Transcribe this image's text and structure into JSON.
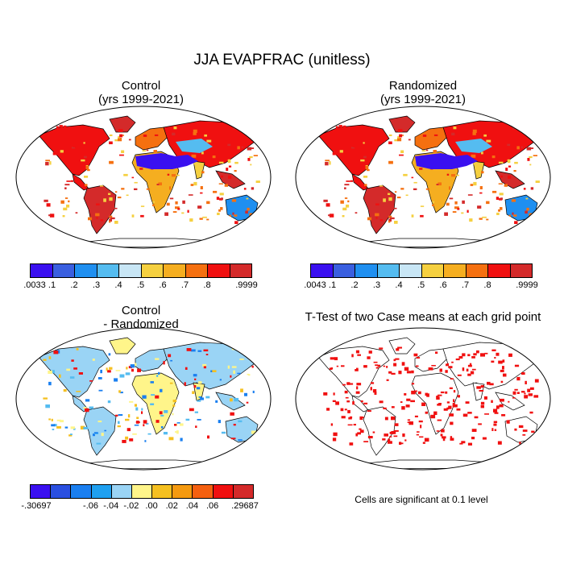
{
  "figure": {
    "title": "JJA EVAPFRAC (unitless)",
    "panels": [
      {
        "id": "control",
        "title": "Control",
        "subtitle": "(yrs 1999-2021)"
      },
      {
        "id": "randomized",
        "title": "Randomized",
        "subtitle": "(yrs 1999-2021)"
      },
      {
        "id": "difference",
        "title": "Control",
        "subtitle": "- Randomized"
      },
      {
        "id": "ttest",
        "title": "T-Test of two Case means at each grid point",
        "subtitle": ""
      }
    ],
    "note": "Cells are significant at 0.1 level"
  },
  "colorbars": {
    "control": {
      "colors": [
        "#3a10f0",
        "#3a5fe0",
        "#1f8ff0",
        "#55bcf0",
        "#c8e6f5",
        "#f5d040",
        "#f5ae20",
        "#f57010",
        "#f01010",
        "#d42a2a"
      ],
      "labels": [
        ".0033",
        ".1",
        ".2",
        ".3",
        ".4",
        ".5",
        ".6",
        ".7",
        ".8",
        ".9999"
      ]
    },
    "randomized": {
      "colors": [
        "#3a10f0",
        "#3a5fe0",
        "#1f8ff0",
        "#55bcf0",
        "#c8e6f5",
        "#f5d040",
        "#f5ae20",
        "#f57010",
        "#f01010",
        "#d42a2a"
      ],
      "labels": [
        ".0043",
        ".1",
        ".2",
        ".3",
        ".4",
        ".5",
        ".6",
        ".7",
        ".8",
        ".9999"
      ]
    },
    "difference": {
      "colors": [
        "#3a10f0",
        "#2a4fe0",
        "#1a7ff0",
        "#1fa0f0",
        "#9ad4f5",
        "#fff58a",
        "#f5c020",
        "#f59a10",
        "#f56010",
        "#f01010",
        "#d42a2a"
      ],
      "labels": [
        "-.30697",
        "-.06",
        "-.04",
        "-.02",
        ".00",
        ".02",
        ".04",
        ".06",
        ".29687"
      ]
    }
  }
}
